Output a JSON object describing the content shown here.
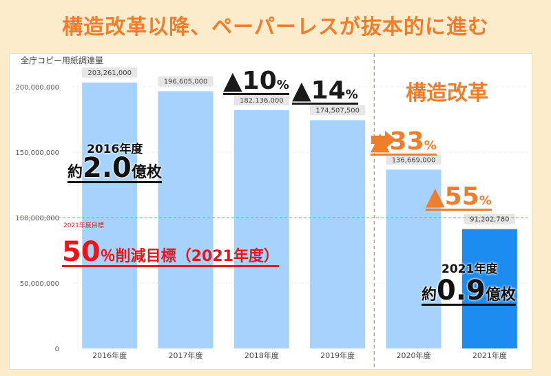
{
  "headline": "構造改革以降、ペーパーレスが抜本的に進む",
  "chart_data": {
    "type": "bar",
    "title": "全庁コピー用紙調達量",
    "categories": [
      "2016年度",
      "2017年度",
      "2018年度",
      "2019年度",
      "2020年度",
      "2021年度"
    ],
    "values": [
      203261000,
      196605000,
      182136000,
      174507500,
      136669000,
      91202780
    ],
    "data_labels": [
      "203,261,000",
      "196,605,000",
      "182,136,000",
      "174,507,500",
      "136,669,000",
      "91,202,780"
    ],
    "y_ticks": [
      0,
      50000000,
      100000000,
      150000000,
      200000000
    ],
    "y_tick_labels": [
      "0",
      "50,000,000",
      "100,000,000",
      "150,000,000",
      "200,000,000"
    ],
    "ylim": [
      0,
      220000000
    ],
    "grid": true,
    "target_value": 100000000,
    "target_label": "2021年度目標",
    "colors": {
      "bar": "#a5d3fb",
      "highlight_bar": "#1c8cf0",
      "target_line": "#e57a7a",
      "divider": "#ee7d2c"
    }
  },
  "annotations": {
    "reduction_2018": {
      "value": "▲10",
      "unit": "%"
    },
    "reduction_2019": {
      "value": "▲14",
      "unit": "%"
    },
    "reduction_2020": {
      "value": "▲33",
      "unit": "%"
    },
    "reduction_2021": {
      "value": "▲55",
      "unit": "%"
    },
    "reform_label": "構造改革",
    "summary_2016": {
      "title": "2016年度",
      "prefix": "約",
      "value": "2.0",
      "unit": "億枚"
    },
    "summary_2021": {
      "title": "2021年度",
      "prefix": "約",
      "value": "0.9",
      "unit": "億枚"
    },
    "target": {
      "value": "50",
      "unit": "％削減目標（2021年度）"
    }
  }
}
